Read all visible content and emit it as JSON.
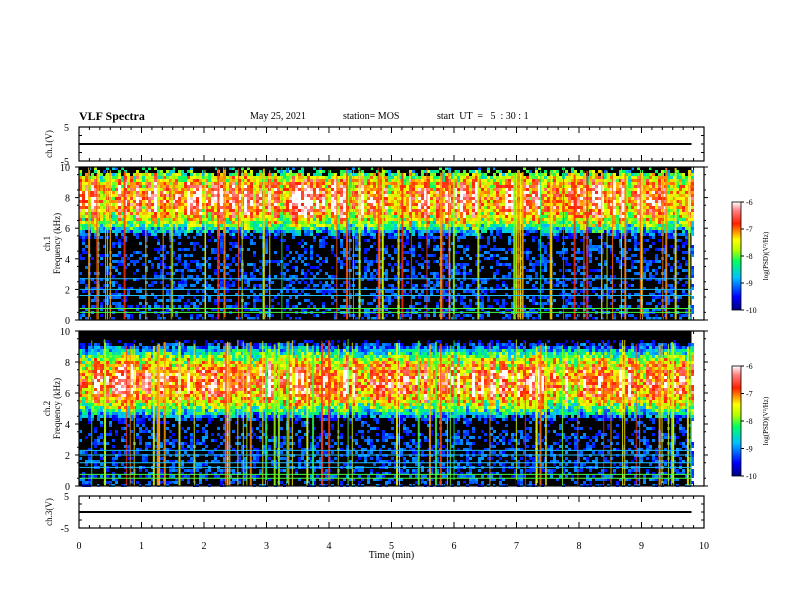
{
  "header": {
    "title": "VLF Spectra",
    "date": "May 25, 2021",
    "station": "station= MOS",
    "start": "start  UT  =   5  : 30 : 1"
  },
  "chart_data": [
    {
      "type": "line",
      "ylabel": "ch.1(V)",
      "ylim": [
        -5,
        5
      ],
      "yticks": [
        "5",
        "-5"
      ],
      "series": [
        {
          "values_x": [
            0,
            9.8
          ],
          "values_y": [
            0,
            0
          ]
        }
      ]
    },
    {
      "type": "heatmap",
      "ylabel": "ch.1\nFrequency  (kHz)",
      "ylabel_lines": [
        "ch.1",
        "Frequency  (kHz)"
      ],
      "ylim": [
        0,
        10
      ],
      "xlim": [
        0,
        10
      ],
      "data_x_end": 9.8,
      "yticks": [
        "0",
        "2",
        "4",
        "6",
        "8",
        "10"
      ],
      "band_center_khz": 8.0,
      "signal_top_khz": 9.5,
      "horizontal_lines_khz": [
        0.5,
        0.75,
        1.6,
        2.0,
        2.7
      ],
      "colorbar": {
        "label": "log(PSD)(V²/Hz)",
        "ticks": [
          "-6",
          "-7",
          "-8",
          "-9",
          "-10"
        ],
        "range": [
          -10,
          -6
        ]
      }
    },
    {
      "type": "heatmap",
      "ylabel": "ch.2\nFrequency  (kHz)",
      "ylabel_lines": [
        "ch.2",
        "Frequency  (kHz)"
      ],
      "ylim": [
        0,
        10
      ],
      "xlim": [
        0,
        10
      ],
      "data_x_end": 9.8,
      "yticks": [
        "0",
        "2",
        "4",
        "6",
        "8",
        "10"
      ],
      "band_center_khz": 6.8,
      "signal_top_khz": 9.8,
      "horizontal_lines_khz": [
        0.5,
        0.75,
        1.2,
        1.5,
        2.0,
        2.3
      ],
      "colorbar": {
        "label": "log(PSD)(V²/Hz)",
        "ticks": [
          "-6",
          "-7",
          "-8",
          "-9",
          "-10"
        ],
        "range": [
          -10,
          -6
        ]
      }
    },
    {
      "type": "line",
      "ylabel": "ch.3(V)",
      "ylim": [
        -5,
        5
      ],
      "yticks": [
        "5",
        "-5"
      ],
      "series": [
        {
          "values_x": [
            0,
            9.8
          ],
          "values_y": [
            0,
            0
          ]
        }
      ]
    }
  ],
  "xaxis": {
    "label": "Time  (min)",
    "ticks": [
      "0",
      "1",
      "2",
      "3",
      "4",
      "5",
      "6",
      "7",
      "8",
      "9",
      "10"
    ],
    "range": [
      0,
      10
    ]
  }
}
